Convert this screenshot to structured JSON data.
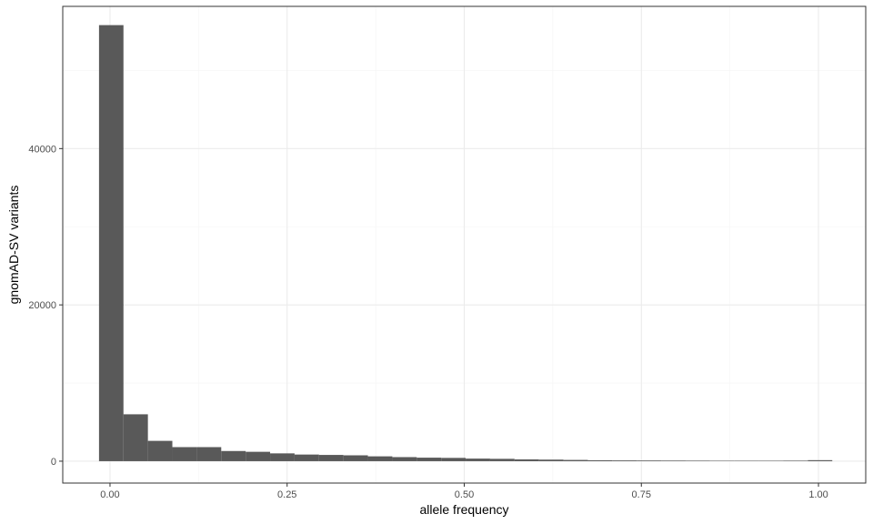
{
  "chart_data": {
    "type": "bar",
    "xlabel": "allele frequency",
    "ylabel": "gnomAD-SV variants",
    "xlim": [
      -0.0667,
      1.0667
    ],
    "ylim": [
      -2800,
      58200
    ],
    "x_ticks": [
      0.0,
      0.25,
      0.5,
      0.75,
      1.0
    ],
    "x_tick_labels": [
      "0.00",
      "0.25",
      "0.50",
      "0.75",
      "1.00"
    ],
    "y_ticks": [
      0,
      20000,
      40000
    ],
    "y_tick_labels": [
      "0",
      "20000",
      "40000"
    ],
    "bin_width": 0.0345,
    "bins": [
      {
        "x0": -0.0155,
        "x1": 0.019,
        "count": 55800
      },
      {
        "x0": 0.019,
        "x1": 0.0535,
        "count": 6000
      },
      {
        "x0": 0.0535,
        "x1": 0.088,
        "count": 2600
      },
      {
        "x0": 0.088,
        "x1": 0.1225,
        "count": 1800
      },
      {
        "x0": 0.1225,
        "x1": 0.157,
        "count": 1800
      },
      {
        "x0": 0.157,
        "x1": 0.1915,
        "count": 1300
      },
      {
        "x0": 0.1915,
        "x1": 0.226,
        "count": 1200
      },
      {
        "x0": 0.226,
        "x1": 0.2605,
        "count": 1000
      },
      {
        "x0": 0.2605,
        "x1": 0.295,
        "count": 850
      },
      {
        "x0": 0.295,
        "x1": 0.3295,
        "count": 800
      },
      {
        "x0": 0.3295,
        "x1": 0.364,
        "count": 750
      },
      {
        "x0": 0.364,
        "x1": 0.3985,
        "count": 620
      },
      {
        "x0": 0.3985,
        "x1": 0.433,
        "count": 520
      },
      {
        "x0": 0.433,
        "x1": 0.4675,
        "count": 450
      },
      {
        "x0": 0.4675,
        "x1": 0.502,
        "count": 420
      },
      {
        "x0": 0.502,
        "x1": 0.5365,
        "count": 330
      },
      {
        "x0": 0.5365,
        "x1": 0.571,
        "count": 300
      },
      {
        "x0": 0.571,
        "x1": 0.6055,
        "count": 230
      },
      {
        "x0": 0.6055,
        "x1": 0.64,
        "count": 200
      },
      {
        "x0": 0.64,
        "x1": 0.6745,
        "count": 160
      },
      {
        "x0": 0.6745,
        "x1": 0.709,
        "count": 120
      },
      {
        "x0": 0.709,
        "x1": 0.7435,
        "count": 100
      },
      {
        "x0": 0.7435,
        "x1": 0.778,
        "count": 90
      },
      {
        "x0": 0.778,
        "x1": 0.8125,
        "count": 80
      },
      {
        "x0": 0.8125,
        "x1": 0.847,
        "count": 70
      },
      {
        "x0": 0.847,
        "x1": 0.8815,
        "count": 60
      },
      {
        "x0": 0.8815,
        "x1": 0.916,
        "count": 60
      },
      {
        "x0": 0.916,
        "x1": 0.9505,
        "count": 60
      },
      {
        "x0": 0.9505,
        "x1": 0.985,
        "count": 70
      },
      {
        "x0": 0.985,
        "x1": 1.0195,
        "count": 130
      }
    ],
    "grid": true,
    "colors": {
      "bar": "#595959",
      "grid_major": "#ebebeb",
      "grid_minor": "#f5f5f5",
      "panel_border": "#333333",
      "tick_text": "#4d4d4d"
    }
  }
}
